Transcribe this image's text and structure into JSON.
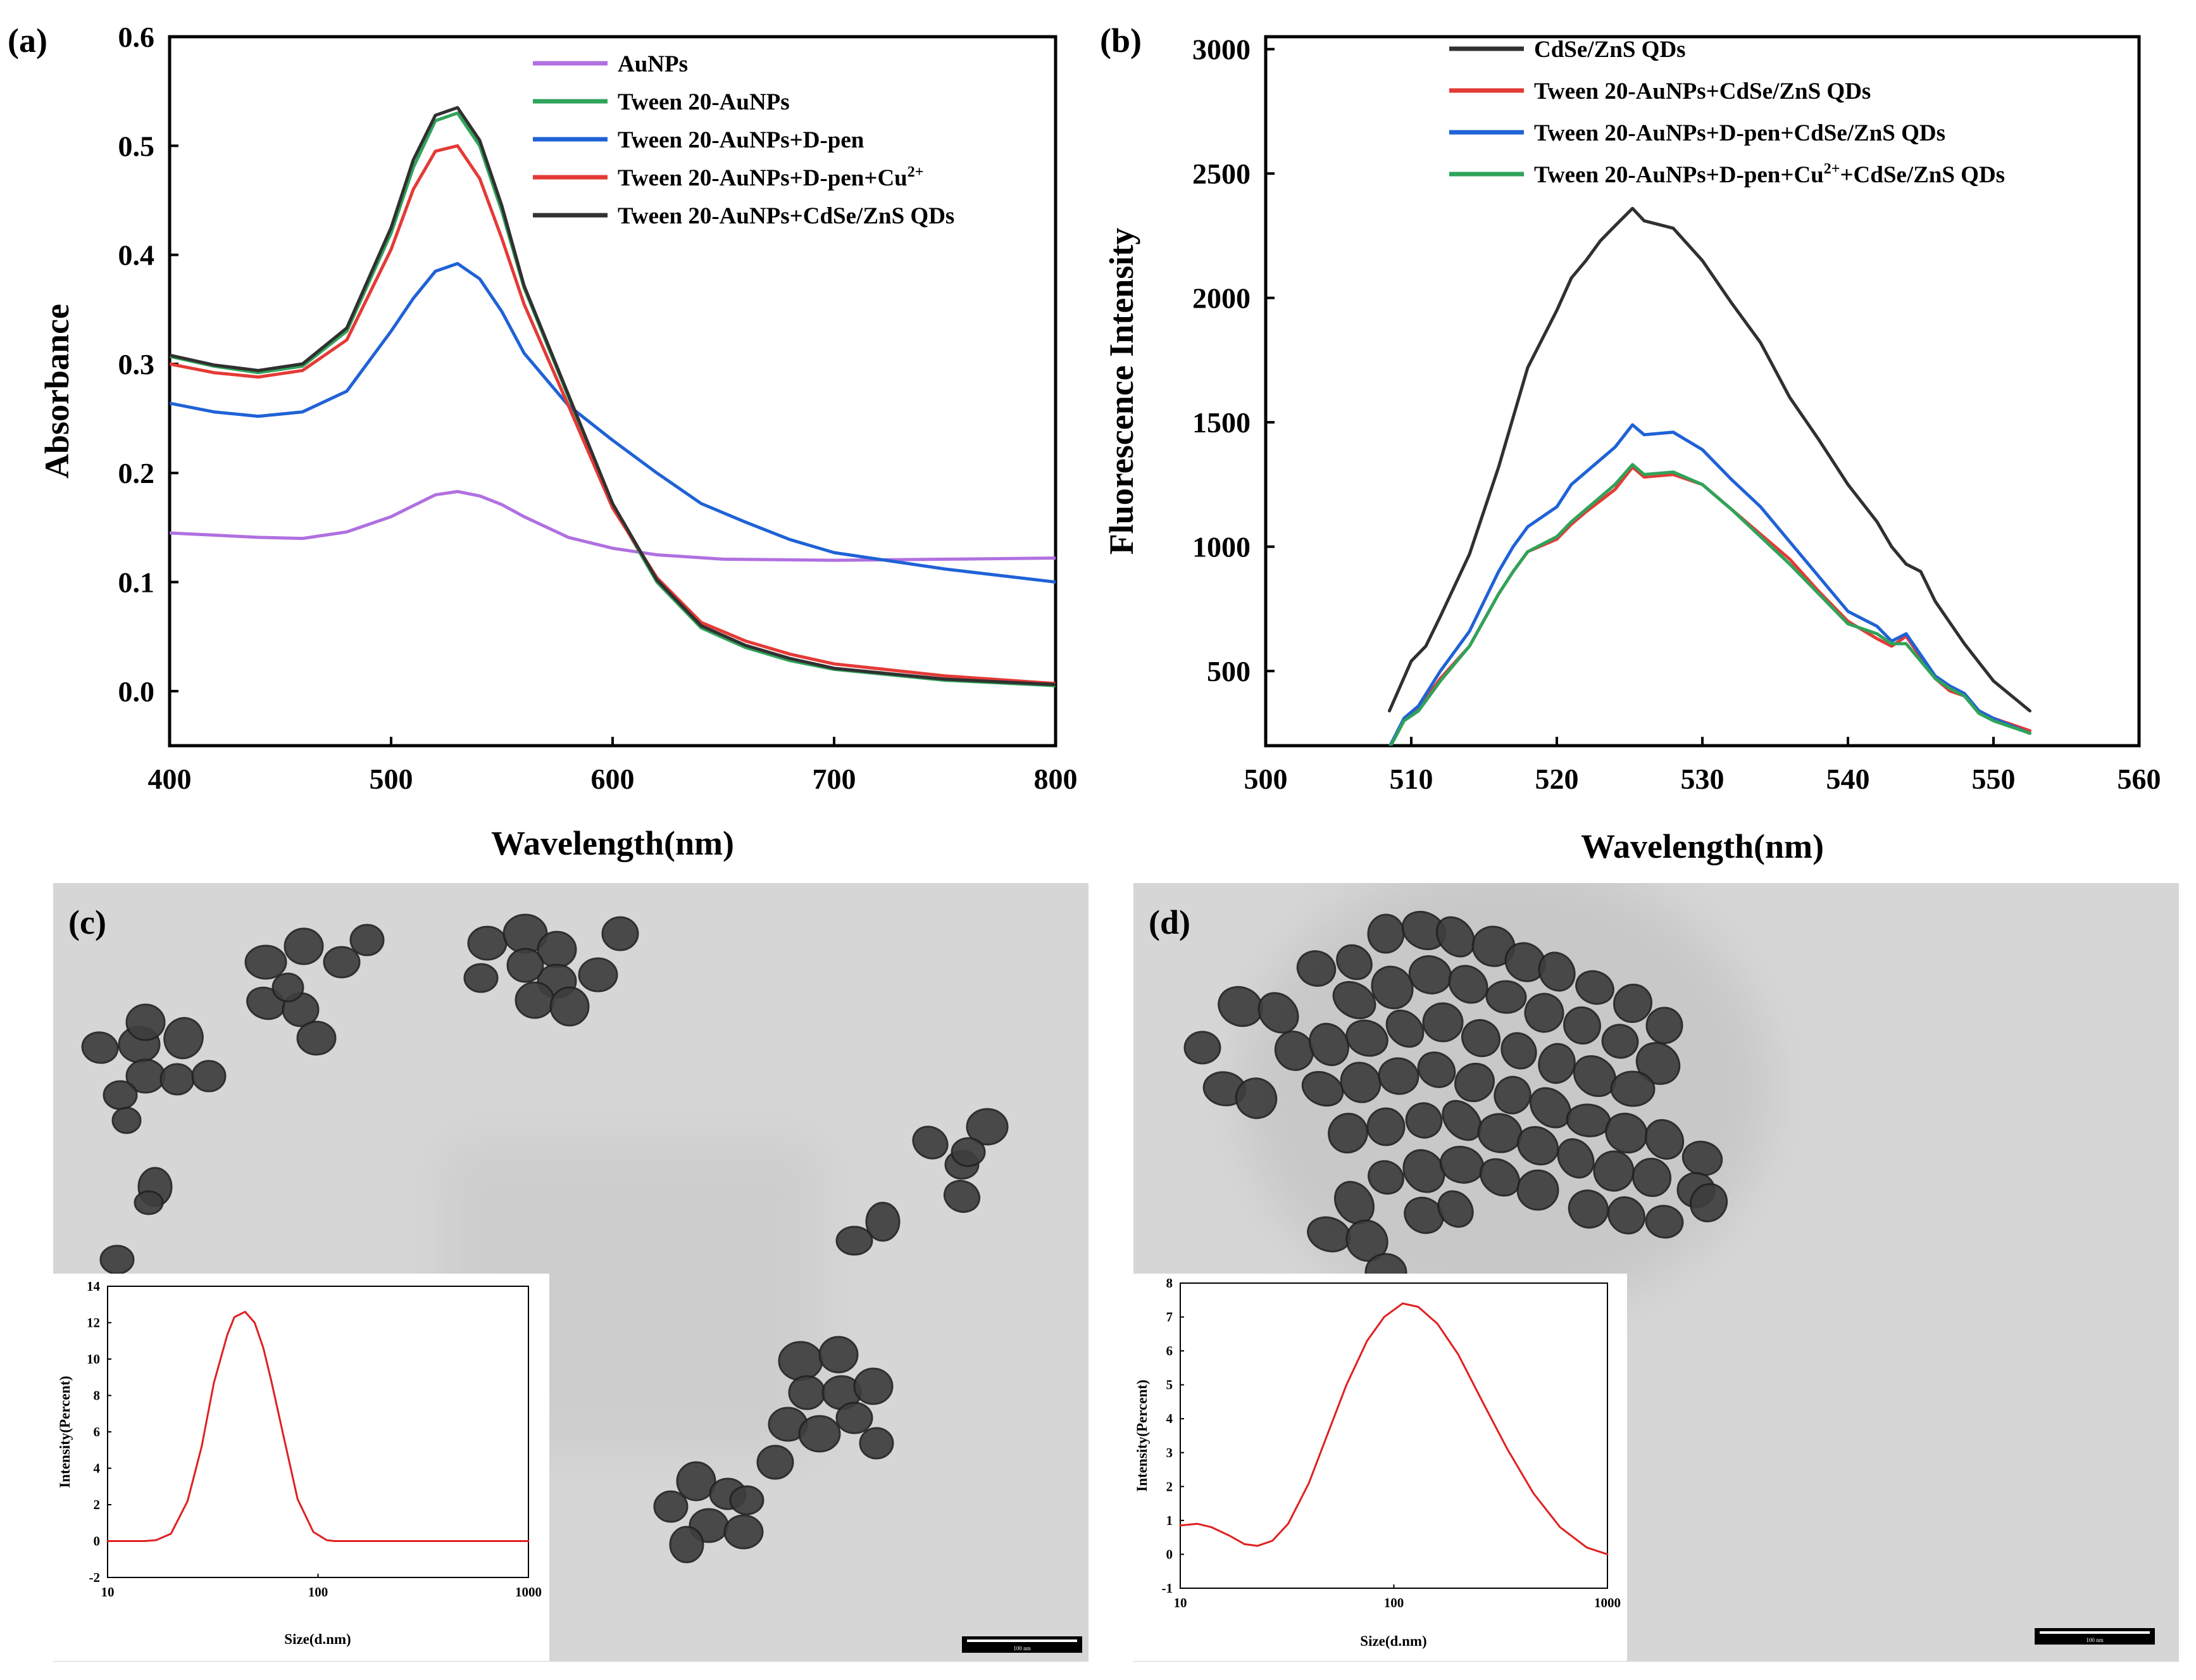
{
  "panels": {
    "a": {
      "label": "(a)"
    },
    "b": {
      "label": "(b)"
    },
    "c": {
      "label": "(c)",
      "scale_bar": "100 nm"
    },
    "d": {
      "label": "(d)",
      "scale_bar": "100 nm"
    }
  },
  "colors": {
    "purple": "#b070e0",
    "green": "#2fa35a",
    "blue": "#1f62d6",
    "red": "#e43a36",
    "black": "#303030",
    "inset_red": "#e02020",
    "tem_bg": "#d6d6d6",
    "particle": "#3e3e3e"
  },
  "chart_data": [
    {
      "panel": "a",
      "type": "line",
      "xlabel": "Wavelength(nm)",
      "ylabel": "Absorbance",
      "xlim": [
        400,
        800
      ],
      "ylim": [
        -0.05,
        0.6
      ],
      "xticks": [
        "400",
        "500",
        "600",
        "700",
        "800"
      ],
      "yticks": [
        "0.0",
        "0.1",
        "0.2",
        "0.3",
        "0.4",
        "0.5",
        "0.6"
      ],
      "legend_position": "top-right",
      "series": [
        {
          "name": "AuNPs",
          "color": "#b070e0",
          "x": [
            400,
            420,
            440,
            460,
            480,
            500,
            510,
            520,
            530,
            540,
            550,
            560,
            580,
            600,
            620,
            650,
            700,
            750,
            800
          ],
          "y": [
            0.145,
            0.143,
            0.141,
            0.14,
            0.146,
            0.16,
            0.17,
            0.18,
            0.183,
            0.179,
            0.171,
            0.16,
            0.141,
            0.131,
            0.125,
            0.121,
            0.12,
            0.121,
            0.122
          ]
        },
        {
          "name": "Tween 20-AuNPs",
          "color": "#2fa35a",
          "x": [
            400,
            420,
            440,
            460,
            480,
            500,
            510,
            520,
            530,
            540,
            550,
            560,
            580,
            600,
            620,
            640,
            660,
            680,
            700,
            750,
            800
          ],
          "y": [
            0.307,
            0.298,
            0.292,
            0.298,
            0.33,
            0.42,
            0.48,
            0.523,
            0.53,
            0.5,
            0.44,
            0.37,
            0.27,
            0.17,
            0.1,
            0.058,
            0.04,
            0.028,
            0.02,
            0.01,
            0.005
          ]
        },
        {
          "name": "Tween 20-AuNPs+D-pen",
          "color": "#1f62d6",
          "x": [
            400,
            420,
            440,
            460,
            480,
            500,
            510,
            520,
            530,
            540,
            550,
            560,
            580,
            600,
            620,
            640,
            660,
            680,
            700,
            750,
            800
          ],
          "y": [
            0.264,
            0.256,
            0.252,
            0.256,
            0.275,
            0.33,
            0.36,
            0.385,
            0.392,
            0.378,
            0.348,
            0.31,
            0.262,
            0.23,
            0.2,
            0.172,
            0.155,
            0.139,
            0.127,
            0.112,
            0.1
          ]
        },
        {
          "name": "Tween 20-AuNPs+D-pen+Cu",
          "name_sup": "2+",
          "color": "#e43a36",
          "x": [
            400,
            420,
            440,
            460,
            480,
            500,
            510,
            520,
            530,
            540,
            550,
            560,
            580,
            600,
            620,
            640,
            660,
            680,
            700,
            750,
            800
          ],
          "y": [
            0.3,
            0.292,
            0.288,
            0.294,
            0.322,
            0.405,
            0.46,
            0.495,
            0.5,
            0.47,
            0.415,
            0.355,
            0.262,
            0.168,
            0.104,
            0.063,
            0.046,
            0.034,
            0.025,
            0.014,
            0.007
          ]
        },
        {
          "name": "Tween 20-AuNPs+CdSe/ZnS QDs",
          "color": "#303030",
          "x": [
            400,
            420,
            440,
            460,
            480,
            500,
            510,
            520,
            530,
            540,
            550,
            560,
            580,
            600,
            620,
            640,
            660,
            680,
            700,
            750,
            800
          ],
          "y": [
            0.308,
            0.299,
            0.294,
            0.3,
            0.333,
            0.425,
            0.487,
            0.528,
            0.535,
            0.505,
            0.445,
            0.372,
            0.272,
            0.172,
            0.102,
            0.06,
            0.042,
            0.03,
            0.021,
            0.011,
            0.006
          ]
        }
      ]
    },
    {
      "panel": "b",
      "type": "line",
      "xlabel": "Wavelength(nm)",
      "ylabel": "Fluorescence Intensity",
      "xlim": [
        500,
        560
      ],
      "ylim": [
        200,
        3050
      ],
      "xticks": [
        "500",
        "510",
        "520",
        "530",
        "540",
        "550",
        "560"
      ],
      "yticks": [
        "500",
        "1000",
        "1500",
        "2000",
        "2500",
        "3000"
      ],
      "legend_position": "top-left",
      "series": [
        {
          "name": "CdSe/ZnS QDs",
          "color": "#303030",
          "x": [
            508.5,
            510,
            511,
            512,
            514,
            516,
            518,
            520,
            521,
            522,
            523,
            524,
            525.2,
            526,
            528,
            530,
            532,
            534,
            536,
            538,
            540,
            542,
            543,
            544,
            545,
            546,
            548,
            550,
            552.5
          ],
          "y": [
            340,
            540,
            600,
            720,
            970,
            1320,
            1720,
            1950,
            2080,
            2150,
            2230,
            2290,
            2360,
            2310,
            2280,
            2150,
            1980,
            1820,
            1600,
            1430,
            1250,
            1100,
            1000,
            930,
            900,
            780,
            610,
            460,
            340
          ]
        },
        {
          "name": "Tween 20-AuNPs+CdSe/ZnS QDs",
          "color": "#e43a36",
          "x": [
            508.5,
            509.5,
            510.5,
            512,
            514,
            516,
            517,
            518,
            520,
            521,
            522,
            524,
            525.2,
            526,
            528,
            530,
            532,
            534,
            536,
            538,
            540,
            542,
            543,
            544,
            546,
            547,
            548,
            549,
            550,
            552.5
          ],
          "y": [
            190,
            300,
            350,
            470,
            600,
            810,
            900,
            980,
            1030,
            1090,
            1140,
            1230,
            1320,
            1280,
            1290,
            1250,
            1150,
            1050,
            950,
            820,
            700,
            630,
            600,
            640,
            470,
            420,
            400,
            340,
            310,
            260
          ]
        },
        {
          "name": "Tween 20-AuNPs+D-pen+CdSe/ZnS QDs",
          "color": "#1f62d6",
          "x": [
            508.5,
            509.5,
            510.5,
            512,
            514,
            516,
            517,
            518,
            520,
            521,
            522,
            524,
            525.2,
            526,
            528,
            530,
            532,
            534,
            536,
            538,
            540,
            542,
            543,
            544,
            546,
            547,
            548,
            549,
            550,
            552.5
          ],
          "y": [
            195,
            310,
            360,
            500,
            660,
            900,
            1000,
            1080,
            1160,
            1250,
            1300,
            1400,
            1490,
            1450,
            1460,
            1390,
            1270,
            1160,
            1020,
            880,
            740,
            680,
            620,
            650,
            480,
            440,
            410,
            340,
            310,
            250
          ]
        },
        {
          "name": "Tween 20-AuNPs+D-pen+Cu",
          "name_sup": "2+",
          "name_tail": "+CdSe/ZnS QDs",
          "color": "#2fa35a",
          "x": [
            508.5,
            509.5,
            510.5,
            512,
            514,
            516,
            517,
            518,
            520,
            521,
            522,
            524,
            525.2,
            526,
            528,
            530,
            532,
            534,
            536,
            538,
            540,
            542,
            543,
            544,
            546,
            547,
            548,
            549,
            550,
            552.5
          ],
          "y": [
            190,
            300,
            340,
            460,
            600,
            810,
            900,
            980,
            1040,
            1100,
            1150,
            1250,
            1330,
            1290,
            1300,
            1250,
            1150,
            1040,
            930,
            810,
            690,
            650,
            610,
            610,
            470,
            430,
            400,
            330,
            300,
            250
          ]
        }
      ]
    },
    {
      "panel": "c-inset",
      "type": "line",
      "xlabel": "Size(d.nm)",
      "ylabel": "Intensity(Percent)",
      "xscale": "log",
      "xlim": [
        10,
        1000
      ],
      "ylim": [
        -2,
        14
      ],
      "xticks": [
        "10",
        "100",
        "1000"
      ],
      "yticks": [
        "-2",
        "0",
        "2",
        "4",
        "6",
        "8",
        "10",
        "12",
        "14"
      ],
      "series": [
        {
          "color": "#e02020",
          "x": [
            10,
            15,
            17,
            20,
            24,
            28,
            32,
            37,
            40,
            45,
            50,
            55,
            60,
            70,
            80,
            95,
            110,
            120,
            200,
            1000
          ],
          "y": [
            0,
            0,
            0.05,
            0.4,
            2.2,
            5.2,
            8.7,
            11.3,
            12.3,
            12.6,
            12.0,
            10.6,
            8.8,
            5.3,
            2.3,
            0.5,
            0.05,
            0,
            0,
            0
          ]
        }
      ]
    },
    {
      "panel": "d-inset",
      "type": "line",
      "xlabel": "Size(d.nm)",
      "ylabel": "Intensity(Percent)",
      "xscale": "log",
      "xlim": [
        10,
        1000
      ],
      "ylim": [
        -1,
        8
      ],
      "xticks": [
        "10",
        "100",
        "1000"
      ],
      "yticks": [
        "-1",
        "0",
        "1",
        "2",
        "3",
        "4",
        "5",
        "6",
        "7",
        "8"
      ],
      "series": [
        {
          "color": "#e02020",
          "x": [
            10,
            12,
            14,
            17,
            20,
            23,
            27,
            32,
            40,
            50,
            60,
            75,
            90,
            110,
            130,
            160,
            200,
            260,
            340,
            450,
            600,
            800,
            1000
          ],
          "y": [
            0.85,
            0.9,
            0.8,
            0.55,
            0.3,
            0.25,
            0.4,
            0.9,
            2.1,
            3.7,
            5.0,
            6.3,
            7.0,
            7.4,
            7.3,
            6.8,
            5.9,
            4.5,
            3.1,
            1.8,
            0.8,
            0.2,
            0
          ]
        }
      ]
    }
  ]
}
